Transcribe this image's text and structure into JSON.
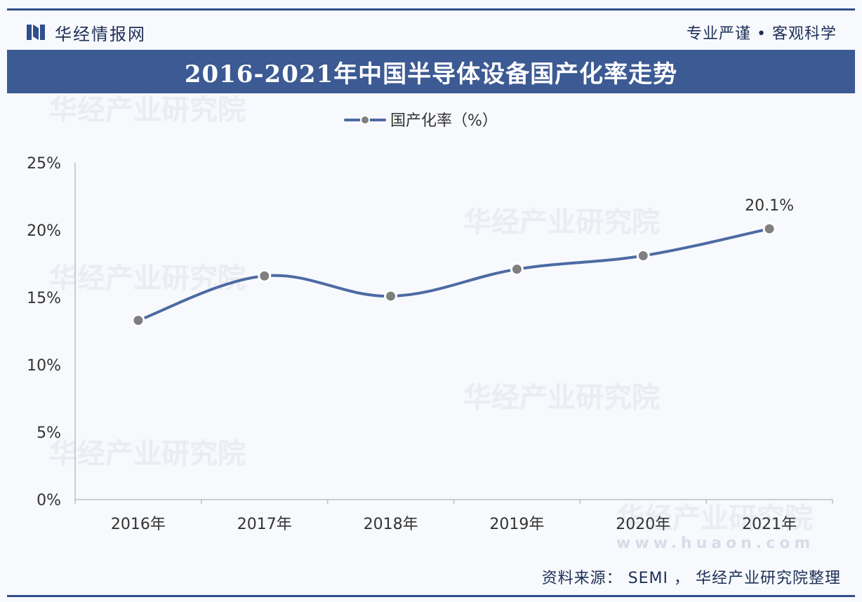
{
  "header": {
    "brand": "华经情报网",
    "slogan": "专业严谨 • 客观科学"
  },
  "title": "2016-2021年中国半导体设备国产化率走势",
  "legend": {
    "label": "国产化率（%）"
  },
  "watermarks": {
    "text": "华经产业研究院",
    "url": "www.huaon.com"
  },
  "source": "资料来源： SEMI ， 华经产业研究院整理",
  "colors": {
    "accent": "#3c5a93",
    "line": "#4d6aa3",
    "marker": "#7f7f7f"
  },
  "chart_data": {
    "type": "line",
    "categories": [
      "2016年",
      "2017年",
      "2018年",
      "2019年",
      "2020年",
      "2021年"
    ],
    "series": [
      {
        "name": "国产化率（%）",
        "values": [
          13.3,
          16.6,
          15.1,
          17.1,
          18.1,
          20.1
        ]
      }
    ],
    "data_labels": [
      null,
      null,
      null,
      null,
      null,
      "20.1%"
    ],
    "ylim": [
      0,
      25
    ],
    "yticks": [
      0,
      5,
      10,
      15,
      20,
      25
    ],
    "ytick_labels": [
      "0%",
      "5%",
      "10%",
      "15%",
      "20%",
      "25%"
    ],
    "grid": false,
    "legend_position": "top-center"
  }
}
